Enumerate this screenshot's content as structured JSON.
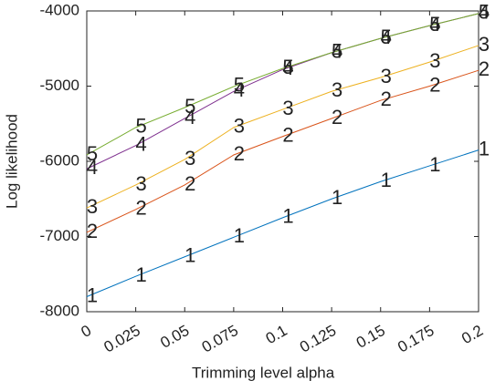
{
  "chart_data": {
    "type": "line",
    "x_label": "Trimming level alpha",
    "y_label": "Log likelihood",
    "x": [
      0,
      0.025,
      0.05,
      0.075,
      0.1,
      0.125,
      0.15,
      0.175,
      0.2
    ],
    "series": [
      {
        "name": "1",
        "color": "#0072BD",
        "values": [
          -7800,
          -7530,
          -7270,
          -7010,
          -6750,
          -6500,
          -6270,
          -6060,
          -5850
        ]
      },
      {
        "name": "2",
        "color": "#D95319",
        "values": [
          -6945,
          -6640,
          -6315,
          -5915,
          -5670,
          -5430,
          -5190,
          -5000,
          -4790
        ]
      },
      {
        "name": "3",
        "color": "#EDB120",
        "values": [
          -6620,
          -6315,
          -5975,
          -5550,
          -5310,
          -5070,
          -4885,
          -4680,
          -4460
        ]
      },
      {
        "name": "4",
        "color": "#7E2F8E",
        "values": [
          -6100,
          -5790,
          -5430,
          -5070,
          -4780,
          -4555,
          -4365,
          -4195,
          -4035
        ]
      },
      {
        "name": "5",
        "color": "#77AC30",
        "values": [
          -5915,
          -5550,
          -5285,
          -5005,
          -4765,
          -4555,
          -4365,
          -4195,
          -4035
        ]
      }
    ],
    "xlim": [
      0,
      0.2
    ],
    "xticks": [
      0,
      0.025,
      0.05,
      0.075,
      0.1,
      0.125,
      0.15,
      0.175,
      0.2
    ],
    "ylim": [
      -8000,
      -4000
    ],
    "yticks": [
      -8000,
      -7000,
      -6000,
      -5000,
      -4000
    ]
  }
}
